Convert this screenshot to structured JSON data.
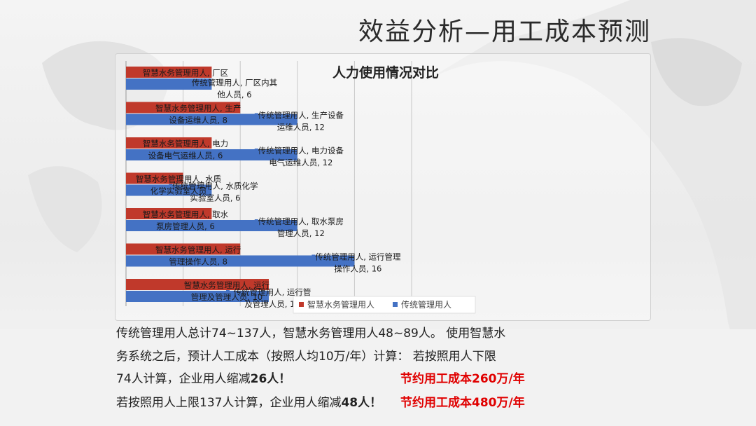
{
  "slide": {
    "title": "效益分析—用工成本预测"
  },
  "colors": {
    "smart": "#c0392b",
    "traditional": "#4472c4",
    "highlight": "#e00000"
  },
  "chart_data": {
    "type": "bar",
    "orientation": "horizontal",
    "title": "人力使用情况对比",
    "xlim": [
      0,
      20
    ],
    "grid": true,
    "legend": "bottom-right",
    "categories": [
      "厂区内其他人员",
      "生产设备运维人员",
      "电力设备电气运维人员",
      "水质化学实验室人员",
      "取水泵房管理人员",
      "运行管理操作人员",
      "运行管理及管理人员"
    ],
    "series": [
      {
        "name": "智慧水务管理用人",
        "values": [
          6,
          8,
          6,
          4,
          6,
          8,
          10
        ],
        "labels": [
          [
            "智慧水务管理用人, 厂区"
          ],
          [
            "智慧水务管理用人, 生产",
            "设备运维人员, 8"
          ],
          [
            "智慧水务管理用人, 电力",
            "设备电气运维人员, 6"
          ],
          [
            "智慧水务管理用人, 水质",
            "化学实验室人员"
          ],
          [
            "智慧水务管理用人, 取水",
            "泵房管理人员, 6"
          ],
          [
            "智慧水务管理用人, 运行",
            "管理操作人员, 8"
          ],
          [
            "智慧水务管理用人, 运行",
            "管理及管理人员, 10"
          ]
        ]
      },
      {
        "name": "传统管理用人",
        "values": [
          6,
          12,
          12,
          6,
          12,
          16,
          10
        ],
        "labels": [
          [
            "传统管理用人, 厂区内其",
            "他人员, 6"
          ],
          [
            "传统管理用人, 生产设备",
            "运维人员, 12"
          ],
          [
            "传统管理用人, 电力设备",
            "电气运维人员, 12"
          ],
          [
            "传统管理用人, 水质化学",
            "实验室人员, 6"
          ],
          [
            "传统管理用人, 取水泵房",
            "管理人员, 12"
          ],
          [
            "传统管理用人, 运行管理",
            "操作人员, 16"
          ],
          [
            "传统管理用人, 运行管",
            "及管理人员, 10"
          ]
        ]
      }
    ],
    "legend_entries": [
      "智慧水务管理用人",
      "传统管理用人"
    ]
  },
  "text": {
    "line1": "传统管理用人总计74~137人，智慧水务管理用人48~89人。 使用智慧水",
    "line2": "务系统之后，预计人工成本（按照人均10万/年）计算： 若按照用人下限",
    "line3_a": "74人计算，企业用人缩减",
    "line3_b": "26人！",
    "line3_c": "节约用工成本260万/年",
    "line4_a": "若按照用人上限137人计算，企业用人缩减",
    "line4_b": "48人！",
    "line4_c": "节约用工成本480万/年"
  }
}
